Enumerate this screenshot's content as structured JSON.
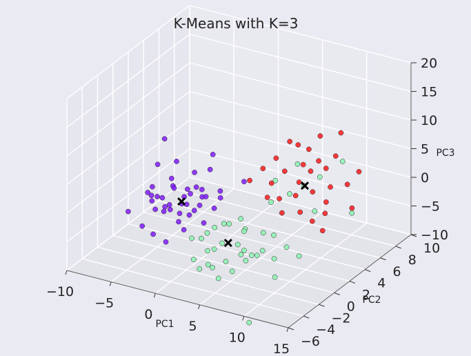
{
  "chart_data": {
    "type": "scatter",
    "title": "K-Means with K=3",
    "xlabel": "PC1",
    "ylabel": "PC2",
    "zlabel": "PC3",
    "xlim": [
      -10,
      15
    ],
    "ylim": [
      -6,
      10
    ],
    "zlim": [
      -10,
      20
    ],
    "x_ticks": [
      "−10",
      "−5",
      "0",
      "5",
      "10",
      "15"
    ],
    "y_ticks": [
      "−6",
      "−4",
      "−2",
      "0",
      "2",
      "4",
      "6",
      "8",
      "10"
    ],
    "z_ticks": [
      "−10",
      "−5",
      "0",
      "5",
      "10",
      "15",
      "20"
    ],
    "grid": true,
    "colors": {
      "cluster_0": "#7f1aff",
      "cluster_1": "#8cf5b0",
      "cluster_2": "#ff1a1a",
      "centroid": "#000000",
      "pane": "#e8e8f0",
      "gridline": "#ffffff"
    },
    "series": [
      {
        "values": [
          [
            -6.5,
            1.1,
            -1.2
          ],
          [
            -6.0,
            0.4,
            -1.8
          ],
          [
            -5.8,
            -0.3,
            -0.5
          ],
          [
            -5.2,
            0.9,
            -2.4
          ],
          [
            -4.9,
            -0.8,
            -1.1
          ],
          [
            -4.6,
            1.6,
            -0.8
          ],
          [
            -4.3,
            0.2,
            -2.9
          ],
          [
            -4.0,
            -1.4,
            -1.6
          ],
          [
            -3.7,
            0.7,
            0.1
          ],
          [
            -3.4,
            2.1,
            -1.4
          ],
          [
            -3.1,
            -0.5,
            -2.2
          ],
          [
            -2.8,
            1.3,
            -3.0
          ],
          [
            -2.6,
            -1.9,
            -0.9
          ],
          [
            -2.3,
            0.1,
            -1.5
          ],
          [
            -2.0,
            2.4,
            -2.5
          ],
          [
            -1.8,
            -0.9,
            -3.4
          ],
          [
            -1.5,
            1.8,
            -0.4
          ],
          [
            -1.2,
            -0.2,
            -2.7
          ],
          [
            -0.9,
            0.8,
            -1.9
          ],
          [
            -0.6,
            -1.6,
            -3.6
          ],
          [
            -0.3,
            2.8,
            -1.2
          ],
          [
            0.0,
            0.3,
            -4.1
          ],
          [
            -7.2,
            2.6,
            0.9
          ],
          [
            -6.8,
            -1.7,
            -2.8
          ],
          [
            -5.5,
            3.1,
            1.6
          ],
          [
            -4.7,
            -2.3,
            -3.9
          ],
          [
            -3.9,
            3.6,
            -0.2
          ],
          [
            -3.2,
            -2.6,
            -4.4
          ],
          [
            -2.4,
            3.9,
            0.6
          ],
          [
            -1.6,
            -2.8,
            -4.9
          ],
          [
            -0.8,
            3.4,
            -3.2
          ],
          [
            0.4,
            1.2,
            -2.3
          ],
          [
            -4.4,
            0.9,
            -3.3
          ],
          [
            -3.6,
            1.9,
            -2.6
          ],
          [
            -2.9,
            0.5,
            -3.8
          ],
          [
            -2.2,
            1.1,
            -0.7
          ],
          [
            -1.4,
            2.2,
            -2.0
          ],
          [
            -5.1,
            2.0,
            -0.1
          ],
          [
            -6.2,
            1.4,
            -3.1
          ],
          [
            -0.2,
            -0.7,
            -1.0
          ],
          [
            -7.8,
            4.2,
            3.5
          ],
          [
            -2.7,
            4.6,
            2.4
          ],
          [
            1.6,
            3.7,
            0.3
          ],
          [
            -1.1,
            0.6,
            1.4
          ]
        ]
      },
      {
        "values": [
          [
            1.2,
            -1.4,
            -4.6
          ],
          [
            2.0,
            -0.6,
            -3.2
          ],
          [
            2.6,
            -2.2,
            -5.4
          ],
          [
            3.2,
            -0.1,
            -2.6
          ],
          [
            3.8,
            -1.7,
            -4.1
          ],
          [
            4.4,
            0.6,
            -3.7
          ],
          [
            5.0,
            -2.6,
            -5.9
          ],
          [
            5.6,
            -0.9,
            -2.1
          ],
          [
            6.2,
            -2.0,
            -4.8
          ],
          [
            6.8,
            0.2,
            -3.0
          ],
          [
            7.4,
            -1.3,
            -5.2
          ],
          [
            8.0,
            -2.7,
            -3.5
          ],
          [
            1.8,
            -3.1,
            -6.3
          ],
          [
            2.9,
            -3.6,
            -7.0
          ],
          [
            4.1,
            -3.3,
            -6.6
          ],
          [
            5.3,
            -3.9,
            -7.4
          ],
          [
            0.9,
            -2.3,
            -3.8
          ],
          [
            6.5,
            -3.5,
            -6.1
          ],
          [
            7.6,
            -3.0,
            -4.3
          ],
          [
            8.8,
            -2.2,
            -2.9
          ],
          [
            9.6,
            -1.6,
            -4.6
          ],
          [
            10.3,
            -0.8,
            -3.1
          ],
          [
            3.5,
            -1.1,
            -1.4
          ],
          [
            4.7,
            -0.3,
            -0.9
          ],
          [
            7.0,
            1.0,
            1.6
          ],
          [
            8.4,
            1.8,
            2.8
          ],
          [
            9.5,
            2.4,
            4.1
          ],
          [
            10.6,
            3.2,
            5.2
          ],
          [
            6.1,
            2.6,
            3.4
          ],
          [
            7.9,
            3.4,
            6.2
          ],
          [
            11.4,
            1.6,
            1.2
          ],
          [
            12.3,
            4.2,
            7.6
          ],
          [
            13.6,
            3.9,
            -0.6
          ],
          [
            9.1,
            -4.3,
            -13.2
          ],
          [
            2.3,
            -1.9,
            -2.7
          ],
          [
            3.6,
            -2.5,
            -4.4
          ],
          [
            5.4,
            -1.5,
            -3.9
          ],
          [
            6.9,
            -2.4,
            -3.4
          ],
          [
            8.6,
            -0.5,
            -2.0
          ],
          [
            11.2,
            -0.2,
            -4.9
          ],
          [
            4.3,
            -4.1,
            -5.2
          ],
          [
            10.8,
            -2.9,
            -6.0
          ]
        ]
      },
      {
        "values": [
          [
            6.0,
            2.2,
            3.3
          ],
          [
            6.8,
            3.0,
            4.9
          ],
          [
            7.5,
            1.5,
            1.9
          ],
          [
            8.2,
            3.8,
            5.8
          ],
          [
            8.9,
            2.0,
            2.5
          ],
          [
            9.6,
            4.2,
            6.6
          ],
          [
            10.3,
            2.6,
            3.1
          ],
          [
            11.0,
            4.8,
            7.4
          ],
          [
            11.7,
            3.3,
            3.8
          ],
          [
            12.4,
            1.8,
            1.0
          ],
          [
            13.1,
            3.9,
            4.2
          ],
          [
            5.4,
            3.5,
            6.1
          ],
          [
            7.1,
            4.4,
            8.2
          ],
          [
            9.0,
            5.1,
            9.8
          ],
          [
            10.9,
            5.6,
            10.6
          ],
          [
            4.6,
            2.7,
            4.8
          ],
          [
            8.4,
            0.8,
            0.5
          ],
          [
            10.1,
            1.2,
            0.9
          ],
          [
            12.0,
            2.4,
            2.2
          ],
          [
            13.8,
            4.6,
            6.0
          ],
          [
            6.4,
            1.2,
            2.0
          ],
          [
            9.3,
            3.5,
            5.4
          ],
          [
            11.3,
            1.4,
            -0.4
          ],
          [
            7.8,
            5.0,
            7.1
          ],
          [
            12.9,
            0.9,
            -0.9
          ],
          [
            5.9,
            4.7,
            8.0
          ],
          [
            10.6,
            4.0,
            5.9
          ],
          [
            8.6,
            2.8,
            3.9
          ],
          [
            3.8,
            1.9,
            3.2
          ],
          [
            14.4,
            3.0,
            1.5
          ]
        ]
      },
      {
        "marker": "x",
        "values": [
          [
            -2.6,
            0.4,
            -1.5
          ],
          [
            4.4,
            -1.6,
            -3.9
          ],
          [
            8.9,
            3.2,
            3.0
          ]
        ]
      }
    ]
  }
}
